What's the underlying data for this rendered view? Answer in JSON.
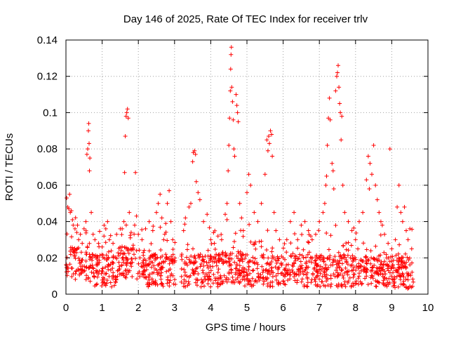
{
  "chart_data": {
    "type": "scatter",
    "title": "Day 146 of 2025, Rate Of TEC Index for receiver trlv",
    "xlabel": "GPS time / hours",
    "ylabel": "ROTI / TECUs",
    "xlim": [
      0,
      10
    ],
    "ylim": [
      0,
      0.14
    ],
    "xticks": [
      0,
      1,
      2,
      3,
      4,
      5,
      6,
      7,
      8,
      9,
      10
    ],
    "yticks": [
      0,
      0.02,
      0.04,
      0.06,
      0.08,
      0.1,
      0.12,
      0.14
    ],
    "xtick_labels": [
      "0",
      "1",
      "2",
      "3",
      "4",
      "5",
      "6",
      "7",
      "8",
      "9",
      "10"
    ],
    "ytick_labels": [
      "0",
      "0.02",
      "0.04",
      "0.06",
      "0.08",
      "0.1",
      "0.12",
      "0.14"
    ],
    "grid": true,
    "marker": "+",
    "series_color": "#ff0000",
    "series": [
      {
        "name": "ROTI",
        "description": "dense band of points between 0.005 and 0.035 TECU across 0 to 9.6 h, with a gap near 3.1 h and spikes",
        "points": [
          [
            0.02,
            0.053
          ],
          [
            0.05,
            0.048
          ],
          [
            0.08,
            0.047
          ],
          [
            0.1,
            0.055
          ],
          [
            0.12,
            0.045
          ],
          [
            0.15,
            0.046
          ],
          [
            0.18,
            0.041
          ],
          [
            0.2,
            0.038
          ],
          [
            0.25,
            0.036
          ],
          [
            0.3,
            0.034
          ],
          [
            0.35,
            0.03
          ],
          [
            0.4,
            0.033
          ],
          [
            0.45,
            0.028
          ],
          [
            0.5,
            0.036
          ],
          [
            0.55,
            0.04
          ],
          [
            0.58,
            0.077
          ],
          [
            0.6,
            0.08
          ],
          [
            0.62,
            0.09
          ],
          [
            0.63,
            0.094
          ],
          [
            0.64,
            0.083
          ],
          [
            0.65,
            0.068
          ],
          [
            0.66,
            0.075
          ],
          [
            0.7,
            0.045
          ],
          [
            0.75,
            0.033
          ],
          [
            0.8,
            0.03
          ],
          [
            0.9,
            0.028
          ],
          [
            1.0,
            0.026
          ],
          [
            1.05,
            0.032
          ],
          [
            1.1,
            0.036
          ],
          [
            1.15,
            0.04
          ],
          [
            1.2,
            0.03
          ],
          [
            1.3,
            0.028
          ],
          [
            1.4,
            0.033
          ],
          [
            1.5,
            0.036
          ],
          [
            1.6,
            0.04
          ],
          [
            1.62,
            0.067
          ],
          [
            1.64,
            0.087
          ],
          [
            1.66,
            0.098
          ],
          [
            1.68,
            0.1
          ],
          [
            1.7,
            0.102
          ],
          [
            1.72,
            0.097
          ],
          [
            1.75,
            0.045
          ],
          [
            1.8,
            0.034
          ],
          [
            1.9,
            0.038
          ],
          [
            1.92,
            0.067
          ],
          [
            1.95,
            0.043
          ],
          [
            2.0,
            0.033
          ],
          [
            2.1,
            0.03
          ],
          [
            2.2,
            0.036
          ],
          [
            2.3,
            0.04
          ],
          [
            2.4,
            0.035
          ],
          [
            2.5,
            0.045
          ],
          [
            2.55,
            0.05
          ],
          [
            2.6,
            0.055
          ],
          [
            2.65,
            0.042
          ],
          [
            2.7,
            0.03
          ],
          [
            2.8,
            0.05
          ],
          [
            2.85,
            0.057
          ],
          [
            2.9,
            0.04
          ],
          [
            2.95,
            0.03
          ],
          [
            3.2,
            0.022
          ],
          [
            3.25,
            0.035
          ],
          [
            3.3,
            0.042
          ],
          [
            3.4,
            0.048
          ],
          [
            3.45,
            0.05
          ],
          [
            3.5,
            0.073
          ],
          [
            3.52,
            0.078
          ],
          [
            3.55,
            0.079
          ],
          [
            3.58,
            0.077
          ],
          [
            3.6,
            0.062
          ],
          [
            3.65,
            0.056
          ],
          [
            3.7,
            0.052
          ],
          [
            3.8,
            0.04
          ],
          [
            3.9,
            0.044
          ],
          [
            4.0,
            0.03
          ],
          [
            4.1,
            0.028
          ],
          [
            4.2,
            0.032
          ],
          [
            4.3,
            0.03
          ],
          [
            4.4,
            0.044
          ],
          [
            4.45,
            0.05
          ],
          [
            4.48,
            0.068
          ],
          [
            4.5,
            0.082
          ],
          [
            4.52,
            0.097
          ],
          [
            4.54,
            0.112
          ],
          [
            4.55,
            0.124
          ],
          [
            4.56,
            0.132
          ],
          [
            4.57,
            0.136
          ],
          [
            4.58,
            0.114
          ],
          [
            4.6,
            0.106
          ],
          [
            4.62,
            0.096
          ],
          [
            4.64,
            0.08
          ],
          [
            4.66,
            0.076
          ],
          [
            4.7,
            0.11
          ],
          [
            4.72,
            0.104
          ],
          [
            4.74,
            0.1
          ],
          [
            4.76,
            0.095
          ],
          [
            4.8,
            0.05
          ],
          [
            4.85,
            0.042
          ],
          [
            4.9,
            0.035
          ],
          [
            5.0,
            0.056
          ],
          [
            5.05,
            0.066
          ],
          [
            5.1,
            0.06
          ],
          [
            5.2,
            0.045
          ],
          [
            5.3,
            0.04
          ],
          [
            5.4,
            0.05
          ],
          [
            5.5,
            0.066
          ],
          [
            5.55,
            0.085
          ],
          [
            5.58,
            0.079
          ],
          [
            5.6,
            0.087
          ],
          [
            5.62,
            0.083
          ],
          [
            5.65,
            0.09
          ],
          [
            5.68,
            0.088
          ],
          [
            5.7,
            0.076
          ],
          [
            5.75,
            0.045
          ],
          [
            5.8,
            0.035
          ],
          [
            5.9,
            0.03
          ],
          [
            6.0,
            0.02
          ],
          [
            6.1,
            0.03
          ],
          [
            6.2,
            0.04
          ],
          [
            6.3,
            0.045
          ],
          [
            6.4,
            0.03
          ],
          [
            6.5,
            0.038
          ],
          [
            6.6,
            0.04
          ],
          [
            6.7,
            0.035
          ],
          [
            6.8,
            0.03
          ],
          [
            6.9,
            0.033
          ],
          [
            7.0,
            0.04
          ],
          [
            7.1,
            0.045
          ],
          [
            7.15,
            0.05
          ],
          [
            7.18,
            0.06
          ],
          [
            7.2,
            0.065
          ],
          [
            7.22,
            0.082
          ],
          [
            7.25,
            0.097
          ],
          [
            7.28,
            0.108
          ],
          [
            7.3,
            0.096
          ],
          [
            7.35,
            0.072
          ],
          [
            7.38,
            0.068
          ],
          [
            7.4,
            0.058
          ],
          [
            7.45,
            0.112
          ],
          [
            7.48,
            0.12
          ],
          [
            7.5,
            0.122
          ],
          [
            7.52,
            0.126
          ],
          [
            7.54,
            0.114
          ],
          [
            7.56,
            0.105
          ],
          [
            7.58,
            0.1
          ],
          [
            7.6,
            0.085
          ],
          [
            7.62,
            0.098
          ],
          [
            7.65,
            0.06
          ],
          [
            7.7,
            0.045
          ],
          [
            7.8,
            0.04
          ],
          [
            7.9,
            0.035
          ],
          [
            8.0,
            0.03
          ],
          [
            8.1,
            0.04
          ],
          [
            8.2,
            0.045
          ],
          [
            8.3,
            0.063
          ],
          [
            8.35,
            0.076
          ],
          [
            8.38,
            0.058
          ],
          [
            8.4,
            0.072
          ],
          [
            8.45,
            0.066
          ],
          [
            8.5,
            0.082
          ],
          [
            8.55,
            0.06
          ],
          [
            8.6,
            0.052
          ],
          [
            8.65,
            0.045
          ],
          [
            8.7,
            0.04
          ],
          [
            8.8,
            0.033
          ],
          [
            8.9,
            0.028
          ],
          [
            8.95,
            0.08
          ],
          [
            9.0,
            0.025
          ],
          [
            9.1,
            0.03
          ],
          [
            9.15,
            0.048
          ],
          [
            9.2,
            0.06
          ],
          [
            9.25,
            0.045
          ],
          [
            9.3,
            0.04
          ],
          [
            9.35,
            0.048
          ],
          [
            9.4,
            0.035
          ],
          [
            9.45,
            0.03
          ],
          [
            9.5,
            0.036
          ],
          [
            9.55,
            0.025
          ]
        ]
      }
    ]
  }
}
